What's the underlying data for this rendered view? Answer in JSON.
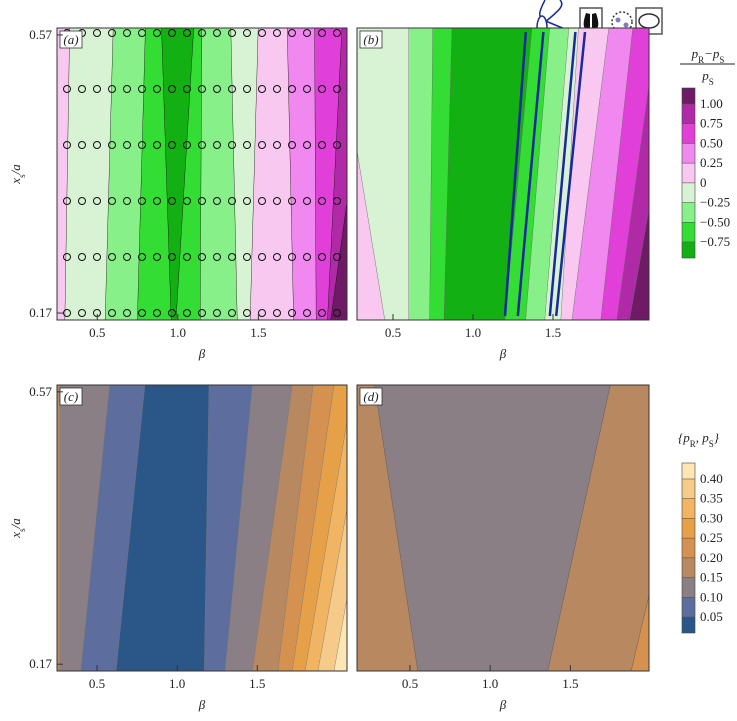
{
  "chart_data": [
    {
      "type": "contour",
      "panel_label": "(a)",
      "xlabel": "β",
      "ylabel": [
        "x",
        "s",
        "/a"
      ],
      "xlim": [
        0.25,
        2.05
      ],
      "ylim": [
        0.16,
        0.58
      ],
      "xticks": [
        0.5,
        {
          "value": 1,
          "label": "1.0"
        },
        1.5
      ],
      "yticks": [
        0.17,
        0.57
      ]
    },
    {
      "type": "contour",
      "panel_label": "(b)",
      "xlabel": "β",
      "xlim": [
        0.275,
        2.1
      ],
      "ylim": [
        0.16,
        0.58
      ],
      "xticks": [
        0.5,
        {
          "value": 1,
          "label": "1.0"
        },
        1.5
      ],
      "colorbar": {
        "title": {
          "numerator": [
            "p",
            "R",
            "−p",
            "S"
          ],
          "denominator": [
            "p",
            "S"
          ]
        },
        "levels": [
          {
            "value": -0.75,
            "label": "−0.75"
          },
          {
            "value": -0.5,
            "label": "−0.50"
          },
          {
            "value": -0.25,
            "label": "−0.25"
          },
          0,
          0.25,
          {
            "value": 0.5,
            "label": "0.50"
          },
          0.75,
          {
            "value": 1,
            "label": "1.00"
          }
        ],
        "colors": [
          "#12b012",
          "#33dd33",
          "#88f088",
          "#d8f2d4",
          "#f8c8f0",
          "#f088ef",
          "#e040d8",
          "#b02aa8",
          "#6e1a64"
        ]
      }
    },
    {
      "type": "contour",
      "panel_label": "(c)",
      "xlabel": "β",
      "ylabel": [
        "x",
        "s",
        "/a"
      ],
      "xlim": [
        0.25,
        2.06
      ],
      "ylim": [
        0.16,
        0.58
      ],
      "xticks": [
        0.5,
        {
          "value": 1,
          "label": "1.0"
        },
        1.5
      ],
      "yticks": [
        0.17,
        0.57
      ]
    },
    {
      "type": "contour",
      "panel_label": "(d)",
      "xlabel": "β",
      "xlim": [
        0.17,
        1.99
      ],
      "ylim": [
        0.16,
        0.58
      ],
      "xticks": [
        0.5,
        {
          "value": 1,
          "label": "1.0"
        },
        1.5
      ],
      "colorbar": {
        "title": [
          "{p",
          "R",
          ", p",
          "S",
          "}"
        ],
        "levels": [
          0.05,
          {
            "value": 0.1,
            "label": "0.10"
          },
          0.15,
          {
            "value": 0.2,
            "label": "0.20"
          },
          0.25,
          {
            "value": 0.3,
            "label": "0.30"
          },
          0.35,
          {
            "value": 0.4,
            "label": "0.40"
          }
        ],
        "colors": [
          "#2b5788",
          "#5d6e9e",
          "#8a7f84",
          "#b88860",
          "#d49150",
          "#e6a048",
          "#f0b462",
          "#f6cb8a",
          "#fde6b3"
        ]
      }
    }
  ]
}
